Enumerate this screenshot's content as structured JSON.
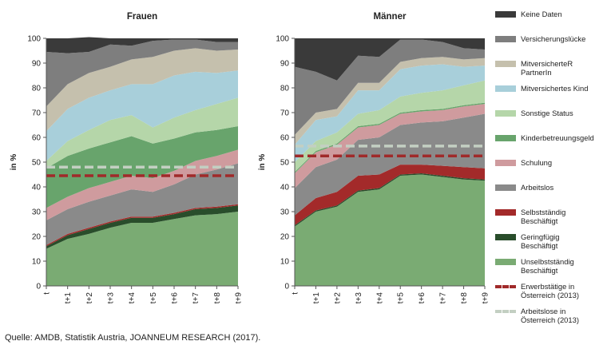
{
  "source": "Quelle: AMDB, Statistik Austria, JOANNEUM RESEARCH (2017).",
  "chart_data": [
    {
      "type": "area",
      "stacked": true,
      "title": "Frauen",
      "ylabel": "in %",
      "ylim": [
        0,
        100
      ],
      "yticks": [
        0,
        10,
        20,
        30,
        40,
        50,
        60,
        70,
        80,
        90,
        100
      ],
      "categories": [
        "t",
        "t+1",
        "t+2",
        "t+3",
        "t+4",
        "t+5",
        "t+6",
        "t+7",
        "t+8",
        "t+9"
      ],
      "series": [
        {
          "name": "Unselbstständig Beschäftigt",
          "values": [
            15,
            19,
            21,
            23.5,
            25.5,
            25.5,
            27,
            28.5,
            29,
            30
          ]
        },
        {
          "name": "Geringfügig Beschäftigt",
          "values": [
            1,
            1.5,
            2,
            2,
            2,
            2,
            2,
            2.5,
            2.5,
            2.5
          ]
        },
        {
          "name": "Selbstständig Beschäftigt",
          "values": [
            0.5,
            0.5,
            0.5,
            0.5,
            0.5,
            0.5,
            0.5,
            0.5,
            0.5,
            0.5
          ]
        },
        {
          "name": "Arbeitslos",
          "values": [
            10,
            10,
            10.5,
            10.5,
            11,
            10,
            11.5,
            13.5,
            15,
            16.5
          ]
        },
        {
          "name": "Schulung",
          "values": [
            5,
            5,
            5.5,
            5.5,
            5.5,
            5.5,
            5.5,
            5.5,
            5.5,
            5.5
          ]
        },
        {
          "name": "Kinderbetreuungsgeld",
          "values": [
            16,
            16.5,
            16,
            16,
            16,
            14,
            13,
            11.5,
            10.5,
            9.5
          ]
        },
        {
          "name": "Sonstige Status",
          "values": [
            3,
            6,
            7.5,
            9,
            8.5,
            6.5,
            8.5,
            9,
            10.5,
            11.5
          ]
        },
        {
          "name": "Mitversichertes Kind",
          "values": [
            12,
            13,
            13,
            12,
            12.5,
            17.5,
            17,
            15.5,
            12.5,
            11
          ]
        },
        {
          "name": "MitversicherteR PartnerIn",
          "values": [
            10,
            10,
            10,
            9.5,
            10,
            11,
            10,
            9.5,
            9,
            8.5
          ]
        },
        {
          "name": "Versicherungslücke",
          "values": [
            22,
            12.5,
            8.5,
            9,
            5.5,
            6.5,
            4.5,
            3.5,
            3.5,
            3
          ]
        },
        {
          "name": "Keine Daten",
          "values": [
            5.5,
            6,
            6,
            2.5,
            3,
            1,
            0.5,
            0.5,
            1.5,
            1.5
          ]
        }
      ],
      "reference_lines": [
        {
          "name": "Erwerbstätige in Österreich (2013)",
          "value": 44.5
        },
        {
          "name": "Arbeitslose in Österreich (2013)",
          "value": 48
        }
      ]
    },
    {
      "type": "area",
      "stacked": true,
      "title": "Männer",
      "ylabel": "in %",
      "ylim": [
        0,
        100
      ],
      "yticks": [
        0,
        10,
        20,
        30,
        40,
        50,
        60,
        70,
        80,
        90,
        100
      ],
      "categories": [
        "t",
        "t+1",
        "t+2",
        "t+3",
        "t+4",
        "t+5",
        "t+6",
        "t+7",
        "t+8",
        "t+9"
      ],
      "series": [
        {
          "name": "Unselbstständig Beschäftigt",
          "values": [
            24,
            30,
            32,
            38,
            39,
            44.5,
            45,
            44,
            43,
            42.5
          ]
        },
        {
          "name": "Geringfügig Beschäftigt",
          "values": [
            0.5,
            0.5,
            0.5,
            0.5,
            0.5,
            0.5,
            0.5,
            0.5,
            0.5,
            0.5
          ]
        },
        {
          "name": "Selbstständig Beschäftigt",
          "values": [
            4,
            5,
            5.5,
            6,
            5.5,
            4,
            3.5,
            4,
            4.5,
            4.5
          ]
        },
        {
          "name": "Arbeitslos",
          "values": [
            11,
            12.5,
            13,
            14.5,
            15,
            16,
            17,
            18,
            20,
            22
          ]
        },
        {
          "name": "Schulung",
          "values": [
            6,
            6,
            6,
            5,
            5,
            4.5,
            4.5,
            4.5,
            4.5,
            4
          ]
        },
        {
          "name": "Kinderbetreuungsgeld",
          "values": [
            0.5,
            0.5,
            0.5,
            0.5,
            0.5,
            0.5,
            0.5,
            0.5,
            0.5,
            0.5
          ]
        },
        {
          "name": "Sonstige Status",
          "values": [
            4,
            4,
            4.5,
            5,
            5.5,
            6.5,
            7,
            7.5,
            8,
            9
          ]
        },
        {
          "name": "Mitversichertes Kind",
          "values": [
            7,
            8.5,
            6.5,
            9.5,
            8,
            11,
            11,
            10.5,
            7.5,
            6
          ]
        },
        {
          "name": "MitversicherteR PartnerIn",
          "values": [
            4,
            3,
            3,
            3,
            3,
            3,
            3,
            3,
            3,
            3
          ]
        },
        {
          "name": "Versicherungslücke",
          "values": [
            27.5,
            16.5,
            11.5,
            11,
            10.5,
            9,
            7.5,
            6,
            4.5,
            3.5
          ]
        },
        {
          "name": "Keine Daten",
          "values": [
            11.5,
            13.5,
            17,
            7,
            7.5,
            0.5,
            0.5,
            1.5,
            4,
            4.5
          ]
        }
      ],
      "reference_lines": [
        {
          "name": "Erwerbstätige in Österreich (2013)",
          "value": 52.5
        },
        {
          "name": "Arbeitslose in Österreich (2013)",
          "value": 56.5
        }
      ]
    }
  ],
  "colors": {
    "Keine Daten": "#3a3a3a",
    "Versicherungslücke": "#7e7e7e",
    "MitversicherteR PartnerIn": "#c5c0ad",
    "Mitversichertes Kind": "#a8cfda",
    "Sonstige Status": "#b5d6a9",
    "Kinderbetreuungsgeld": "#68a46c",
    "Schulung": "#cf9b9e",
    "Arbeitslos": "#8a8a8a",
    "Selbstständig Beschäftigt": "#a32a2a",
    "Geringfügig Beschäftigt": "#294d2b",
    "Unselbstständig Beschäftigt": "#7aab73",
    "Erwerbstätige in Österreich (2013)": "#a02a2a",
    "Arbeitslose in Österreich (2013)": "#c3cfc2"
  },
  "legend": [
    {
      "label": "Keine Daten",
      "style": "solid"
    },
    {
      "label": "Versicherungslücke",
      "style": "solid"
    },
    {
      "label": "MitversicherteR\nPartnerIn",
      "style": "solid"
    },
    {
      "label": "Mitversichertes Kind",
      "style": "solid"
    },
    {
      "label": "Sonstige Status",
      "style": "solid"
    },
    {
      "label": "Kinderbetreuungsgeld",
      "style": "solid"
    },
    {
      "label": "Schulung",
      "style": "solid"
    },
    {
      "label": "Arbeitslos",
      "style": "solid"
    },
    {
      "label": "Selbstständig\nBeschäftigt",
      "style": "solid"
    },
    {
      "label": "Geringfügig\nBeschäftigt",
      "style": "solid"
    },
    {
      "label": "Unselbstständig\nBeschäftigt",
      "style": "solid"
    },
    {
      "label": "Erwerbstätige in\nÖsterreich (2013)",
      "style": "dashed"
    },
    {
      "label": "Arbeitslose in\nÖsterreich (2013)",
      "style": "dashed"
    }
  ]
}
